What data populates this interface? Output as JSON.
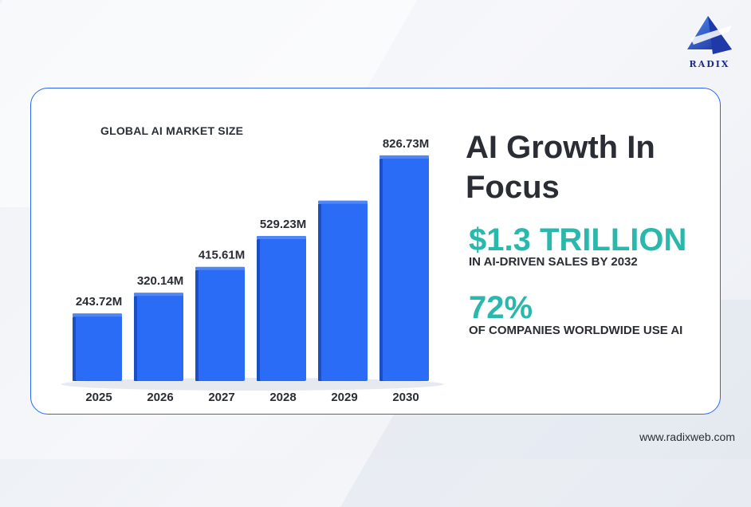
{
  "brand": {
    "logo_text": "RADIX",
    "website": "www.radixweb.com",
    "colors": {
      "accent_blue": "#2b67f6",
      "teal": "#2ab8ac",
      "dark_text": "#2a2d34"
    }
  },
  "headline": "AI Growth In Focus",
  "stats": [
    {
      "value": "$1.3 TRILLION",
      "description": "IN AI-DRIVEN SALES BY 2032"
    },
    {
      "value": "72%",
      "description": "OF COMPANIES WORLDWIDE USE AI"
    }
  ],
  "chart_data": {
    "type": "bar",
    "title": "GLOBAL AI MARKET SIZE",
    "categories": [
      "2025",
      "2026",
      "2027",
      "2028",
      "2029",
      "2030"
    ],
    "values": [
      243.72,
      320.14,
      415.61,
      529.23,
      660,
      826.73
    ],
    "data_labels": [
      "243.72M",
      "320.14M",
      "415.61M",
      "529.23M",
      "",
      "826.73M"
    ],
    "xlabel": "",
    "ylabel": "",
    "ylim": [
      0,
      900
    ],
    "grid": false,
    "bar_color": "#2b6cf6"
  }
}
